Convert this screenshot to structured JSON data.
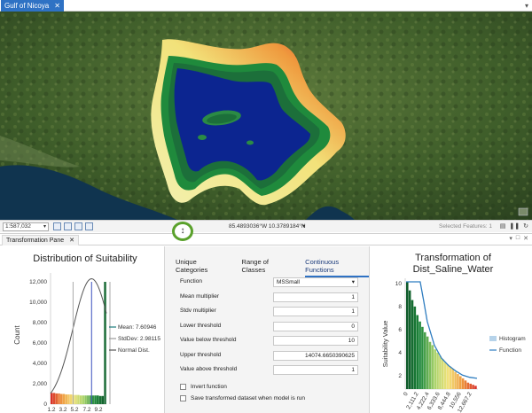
{
  "map_tab": {
    "title": "Gulf of Nicoya",
    "close": "✕"
  },
  "status": {
    "scale": "1:587,032",
    "coordinates": "85.4893036°W 10.3789184°N",
    "selected_features": "Selected Features: 1"
  },
  "pane_tab": {
    "title": "Transformation Pane",
    "close": "✕"
  },
  "distribution_chart": {
    "title": "Distribution of Suitability",
    "ylabel": "Count",
    "y_ticks": [
      "12,000",
      "10,000",
      "8,000",
      "6,000",
      "4,000",
      "2,000",
      "0"
    ],
    "x_ticks": [
      "1.2",
      "3.2",
      "5.2",
      "7.2",
      "9.2"
    ],
    "legend": {
      "mean": "Mean: 7.60946",
      "stddev": "StdDev: 2.98115",
      "normal": "Normal Dist."
    }
  },
  "transform_tabs": [
    "Unique Categories",
    "Range of Classes",
    "Continuous Functions"
  ],
  "params": {
    "function_label": "Function",
    "function_value": "MSSmall",
    "mean_multiplier_label": "Mean multiplier",
    "mean_multiplier_value": "1",
    "stdv_multiplier_label": "Stdv multiplier",
    "stdv_multiplier_value": "1",
    "lower_threshold_label": "Lower threshold",
    "lower_threshold_value": "0",
    "value_below_label": "Value below threshold",
    "value_below_value": "10",
    "upper_threshold_label": "Upper threshold",
    "upper_threshold_value": "14074.6650390625",
    "value_above_label": "Value above threshold",
    "value_above_value": "1",
    "invert_label": "Invert function",
    "save_label": "Save transformed dataset when model is run"
  },
  "transform_chart": {
    "title_line1": "Transformation of",
    "title_line2": "Dist_Saline_Water",
    "ylabel": "Suitability Value",
    "y_ticks": [
      "10",
      "8",
      "6",
      "4",
      "2"
    ],
    "x_ticks": [
      "0",
      "2,111.2",
      "4,222.4",
      "6,333.6",
      "8,444.8",
      "10,556",
      "12,667.2"
    ],
    "legend_histogram": "Histogram",
    "legend_function": "Function"
  },
  "chart_data": [
    {
      "type": "bar",
      "title": "Distribution of Suitability",
      "xlabel": "",
      "ylabel": "Count",
      "ylim": [
        0,
        13000
      ],
      "xlim": [
        1,
        10
      ],
      "categories": [
        "1.2",
        "1.6",
        "2.0",
        "2.4",
        "2.8",
        "3.2",
        "3.6",
        "4.0",
        "4.4",
        "4.8",
        "5.2",
        "5.6",
        "6.0",
        "6.4",
        "6.8",
        "7.2",
        "7.6",
        "8.0",
        "8.4",
        "8.8",
        "9.2",
        "9.6",
        "10.0"
      ],
      "values": [
        1100,
        1100,
        1050,
        1050,
        1000,
        1000,
        950,
        950,
        950,
        900,
        900,
        900,
        850,
        850,
        850,
        850,
        850,
        850,
        850,
        850,
        800,
        800,
        12000
      ],
      "mean": 7.60946,
      "stddev": 2.98115,
      "normal_peak": 12300
    },
    {
      "type": "bar",
      "title": "Transformation of Dist_Saline_Water",
      "xlabel": "",
      "ylabel": "Suitability Value",
      "ylim": [
        0,
        10
      ],
      "xlim": [
        0,
        14074.67
      ],
      "histogram_values": [
        10,
        9.2,
        8.3,
        7.7,
        6.9,
        6.3,
        5.8,
        5.3,
        4.9,
        4.4,
        4.1,
        3.7,
        3.4,
        3.1,
        2.8,
        2.5,
        2.3,
        2.1,
        1.9,
        1.6,
        1.4,
        1.2,
        1.0,
        0.8,
        0.6,
        0.5,
        0.4,
        0.3
      ],
      "function": {
        "x": [
          0,
          1400,
          2800,
          3500,
          4200,
          5600,
          7000,
          8400,
          9800,
          11200,
          12600,
          14074.67
        ],
        "y": [
          10,
          10,
          10,
          8.2,
          6.3,
          4.1,
          2.9,
          2.2,
          1.7,
          1.3,
          1.1,
          1.0
        ]
      }
    }
  ]
}
